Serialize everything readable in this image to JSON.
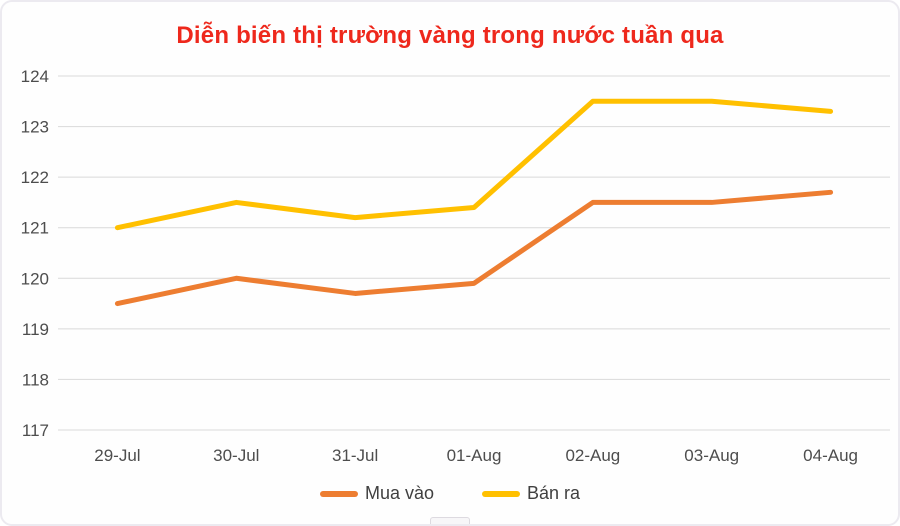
{
  "window": {
    "background": "#fefefe",
    "border_color": "#eceaf0"
  },
  "chart_data": {
    "type": "line",
    "title": "Diễn biến thị trường vàng trong nước tuần qua",
    "title_color": "#ee281c",
    "categories": [
      "29-Jul",
      "30-Jul",
      "31-Jul",
      "01-Aug",
      "02-Aug",
      "03-Aug",
      "04-Aug"
    ],
    "series": [
      {
        "name": "Mua vào",
        "color": "#ED7D31",
        "values": [
          119.5,
          120.0,
          119.7,
          119.9,
          121.5,
          121.5,
          121.7
        ]
      },
      {
        "name": "Bán ra",
        "color": "#FFC000",
        "values": [
          121.0,
          121.5,
          121.2,
          121.4,
          123.5,
          123.5,
          123.3
        ]
      }
    ],
    "ylim": [
      117,
      124
    ],
    "yticks": [
      117,
      118,
      119,
      120,
      121,
      122,
      123,
      124
    ],
    "grid": "horizontal",
    "grid_color": "#d9d9d9",
    "axis_text_color": "#4d4d4d",
    "legend_position": "bottom",
    "line_width": 5
  }
}
